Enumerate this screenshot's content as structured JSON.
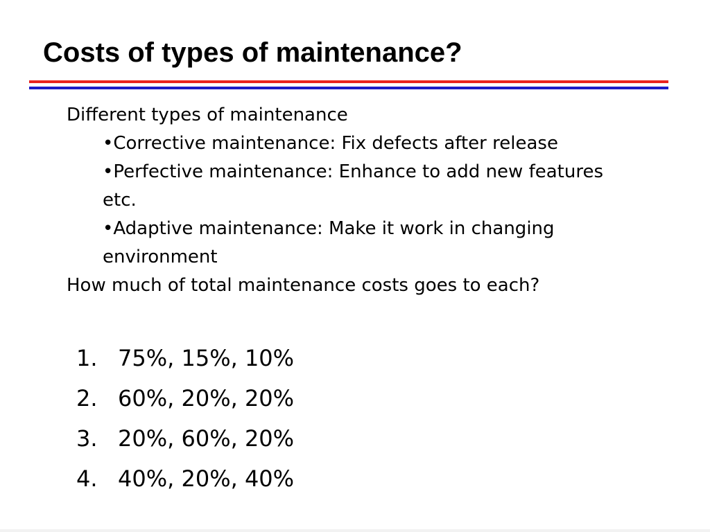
{
  "slide": {
    "title": "Costs of types of maintenance?",
    "intro": "Different types of maintenance",
    "bullets": [
      "Corrective maintenance: Fix defects after release",
      "Perfective maintenance: Enhance to add new features etc.",
      "Adaptive maintenance: Make it work in changing environment"
    ],
    "question": "How much of total maintenance costs goes to each?",
    "answers": [
      {
        "num": "1.",
        "text": "75%, 15%, 10%"
      },
      {
        "num": "2.",
        "text": "60%, 20%, 20%"
      },
      {
        "num": "3.",
        "text": "20%, 60%, 20%"
      },
      {
        "num": "4.",
        "text": "40%, 20%, 40%"
      }
    ]
  },
  "colors": {
    "rule_top": "#e8231f",
    "rule_bottom": "#1c1cc8"
  }
}
